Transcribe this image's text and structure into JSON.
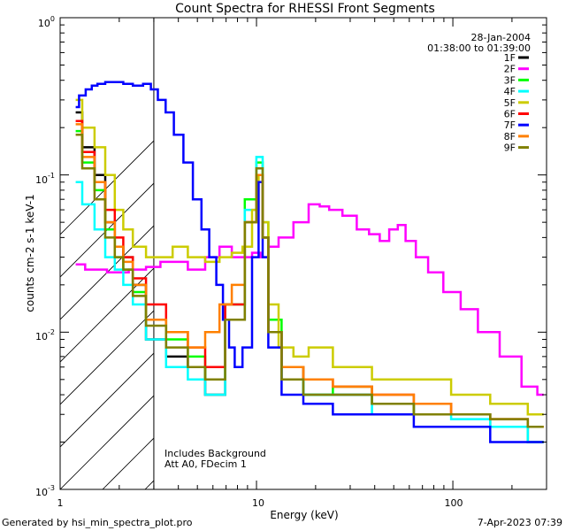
{
  "chart_data": {
    "type": "line",
    "title": "Count Spectra for RHESSI Front Segments",
    "xlabel": "Energy (keV)",
    "ylabel": "counts cm-2 s-1 keV-1",
    "xscale": "log",
    "yscale": "log",
    "xlim": [
      1,
      300
    ],
    "ylim": [
      0.001,
      1
    ],
    "x_tick_labels": [
      {
        "value": 1,
        "label": "1"
      },
      {
        "value": 10,
        "label": "10"
      },
      {
        "value": 100,
        "label": "100"
      }
    ],
    "y_tick_labels": [
      {
        "value": 1,
        "mant": "10",
        "exp": "0"
      },
      {
        "value": 0.1,
        "mant": "10",
        "exp": "-1"
      },
      {
        "value": 0.01,
        "mant": "10",
        "exp": "-2"
      },
      {
        "value": 0.001,
        "mant": "10",
        "exp": "-3"
      }
    ],
    "excluded_region_max": 3,
    "date": "28-Jan-2004",
    "time_range": "01:38:00 to 01:39:00",
    "annotations": [
      "Includes Background",
      "Att A0, FDecim 1"
    ],
    "series": [
      {
        "name": "1F",
        "color": "#000000",
        "x": [
          1.2,
          1.4,
          1.6,
          1.8,
          2.0,
          2.2,
          2.5,
          3.0,
          4.0,
          5.0,
          6.0,
          8.0,
          9.5,
          10.5,
          11.0,
          12.0,
          15.0,
          20.0,
          30.0,
          50.0,
          80.0,
          120.0,
          200.0,
          290.0
        ],
        "values": [
          0.25,
          0.15,
          0.1,
          0.05,
          0.035,
          0.03,
          0.02,
          0.009,
          0.007,
          0.006,
          0.004,
          0.012,
          0.05,
          0.1,
          0.04,
          0.01,
          0.005,
          0.004,
          0.004,
          0.0035,
          0.003,
          0.003,
          0.0025,
          0.002
        ]
      },
      {
        "name": "2F",
        "color": "#ff00ff",
        "x": [
          1.2,
          1.5,
          2.0,
          2.5,
          3.0,
          3.5,
          4.0,
          5.0,
          6.0,
          7.0,
          8.0,
          9.0,
          10.0,
          11.0,
          12.0,
          14.0,
          17.0,
          20.0,
          22.0,
          25.0,
          30.0,
          35.0,
          40.0,
          45.0,
          50.0,
          55.0,
          60.0,
          70.0,
          80.0,
          100.0,
          120.0,
          150.0,
          200.0,
          250.0,
          290.0
        ],
        "values": [
          0.027,
          0.025,
          0.024,
          0.025,
          0.026,
          0.028,
          0.028,
          0.025,
          0.03,
          0.035,
          0.03,
          0.03,
          0.032,
          0.03,
          0.035,
          0.04,
          0.05,
          0.065,
          0.063,
          0.06,
          0.055,
          0.045,
          0.042,
          0.038,
          0.045,
          0.048,
          0.038,
          0.03,
          0.024,
          0.018,
          0.014,
          0.01,
          0.007,
          0.0045,
          0.004
        ]
      },
      {
        "name": "3F",
        "color": "#00ff00",
        "x": [
          1.2,
          1.4,
          1.6,
          1.8,
          2.0,
          2.2,
          2.5,
          3.0,
          4.0,
          5.0,
          6.0,
          8.0,
          9.5,
          10.5,
          11.0,
          12.0,
          15.0,
          20.0,
          30.0,
          50.0,
          80.0,
          120.0,
          200.0,
          290.0
        ],
        "values": [
          0.19,
          0.12,
          0.08,
          0.045,
          0.03,
          0.025,
          0.018,
          0.012,
          0.009,
          0.007,
          0.005,
          0.015,
          0.07,
          0.12,
          0.05,
          0.012,
          0.006,
          0.004,
          0.0045,
          0.0035,
          0.003,
          0.003,
          0.0025,
          0.002
        ]
      },
      {
        "name": "4F",
        "color": "#00ffff",
        "x": [
          1.2,
          1.4,
          1.6,
          1.8,
          2.0,
          2.2,
          2.5,
          3.0,
          4.0,
          5.0,
          6.0,
          8.0,
          9.5,
          10.5,
          11.0,
          12.0,
          15.0,
          20.0,
          30.0,
          50.0,
          80.0,
          120.0,
          200.0,
          290.0
        ],
        "values": [
          0.09,
          0.065,
          0.045,
          0.03,
          0.025,
          0.02,
          0.015,
          0.009,
          0.006,
          0.005,
          0.004,
          0.012,
          0.06,
          0.13,
          0.04,
          0.01,
          0.005,
          0.004,
          0.004,
          0.003,
          0.003,
          0.0028,
          0.0025,
          0.002
        ]
      },
      {
        "name": "5F",
        "color": "#cccc00",
        "x": [
          1.2,
          1.4,
          1.6,
          1.8,
          2.0,
          2.2,
          2.5,
          3.0,
          3.5,
          4.0,
          5.0,
          6.0,
          7.0,
          8.0,
          9.0,
          10.0,
          10.5,
          11.0,
          12.0,
          14.0,
          17.0,
          20.0,
          30.0,
          50.0,
          80.0,
          120.0,
          200.0,
          290.0
        ],
        "values": [
          0.3,
          0.2,
          0.15,
          0.1,
          0.06,
          0.045,
          0.035,
          0.03,
          0.03,
          0.035,
          0.03,
          0.028,
          0.03,
          0.032,
          0.035,
          0.06,
          0.1,
          0.05,
          0.015,
          0.008,
          0.007,
          0.008,
          0.006,
          0.005,
          0.005,
          0.004,
          0.0035,
          0.003
        ]
      },
      {
        "name": "6F",
        "color": "#ff0000",
        "x": [
          1.2,
          1.4,
          1.6,
          1.8,
          2.0,
          2.2,
          2.5,
          3.0,
          4.0,
          5.0,
          6.0,
          8.0,
          9.5,
          10.5,
          11.0,
          12.0,
          15.0,
          20.0,
          30.0,
          50.0,
          80.0,
          120.0,
          200.0,
          290.0
        ],
        "values": [
          0.22,
          0.14,
          0.09,
          0.06,
          0.04,
          0.03,
          0.022,
          0.015,
          0.01,
          0.008,
          0.006,
          0.015,
          0.05,
          0.1,
          0.04,
          0.01,
          0.006,
          0.005,
          0.0045,
          0.004,
          0.0035,
          0.003,
          0.0028,
          0.0025
        ]
      },
      {
        "name": "7F",
        "color": "#0000ff",
        "x": [
          1.2,
          1.3,
          1.4,
          1.5,
          1.6,
          1.8,
          2.0,
          2.2,
          2.5,
          2.8,
          3.0,
          3.3,
          3.6,
          4.0,
          4.5,
          5.0,
          5.5,
          6.0,
          6.5,
          7.0,
          7.5,
          8.0,
          9.0,
          10.0,
          10.5,
          11.0,
          12.0,
          15.0,
          20.0,
          30.0,
          50.0,
          80.0,
          120.0,
          200.0,
          290.0
        ],
        "values": [
          0.27,
          0.32,
          0.35,
          0.37,
          0.38,
          0.39,
          0.39,
          0.38,
          0.37,
          0.38,
          0.35,
          0.3,
          0.25,
          0.18,
          0.12,
          0.07,
          0.045,
          0.03,
          0.02,
          0.012,
          0.008,
          0.006,
          0.008,
          0.03,
          0.09,
          0.03,
          0.008,
          0.004,
          0.0035,
          0.003,
          0.003,
          0.0025,
          0.0025,
          0.002,
          0.002
        ]
      },
      {
        "name": "8F",
        "color": "#ff8000",
        "x": [
          1.2,
          1.4,
          1.6,
          1.8,
          2.0,
          2.2,
          2.5,
          3.0,
          4.0,
          5.0,
          6.0,
          7.0,
          8.0,
          9.5,
          10.5,
          11.0,
          12.0,
          15.0,
          20.0,
          30.0,
          50.0,
          80.0,
          120.0,
          200.0,
          290.0
        ],
        "values": [
          0.21,
          0.13,
          0.09,
          0.05,
          0.035,
          0.028,
          0.02,
          0.012,
          0.01,
          0.008,
          0.01,
          0.015,
          0.02,
          0.05,
          0.1,
          0.04,
          0.01,
          0.006,
          0.005,
          0.0045,
          0.004,
          0.0035,
          0.003,
          0.0028,
          0.0025
        ]
      },
      {
        "name": "9F",
        "color": "#808000",
        "x": [
          1.2,
          1.4,
          1.6,
          1.8,
          2.0,
          2.2,
          2.5,
          3.0,
          4.0,
          5.0,
          6.0,
          8.0,
          9.5,
          10.5,
          11.0,
          12.0,
          15.0,
          20.0,
          30.0,
          50.0,
          80.0,
          120.0,
          200.0,
          290.0
        ],
        "values": [
          0.18,
          0.11,
          0.07,
          0.04,
          0.03,
          0.025,
          0.017,
          0.011,
          0.008,
          0.006,
          0.005,
          0.012,
          0.05,
          0.11,
          0.04,
          0.01,
          0.005,
          0.004,
          0.004,
          0.0035,
          0.003,
          0.003,
          0.0028,
          0.0025
        ]
      }
    ]
  },
  "footer": {
    "generated_by": "Generated by hsi_min_spectra_plot.pro",
    "timestamp": "7-Apr-2023 07:39"
  }
}
